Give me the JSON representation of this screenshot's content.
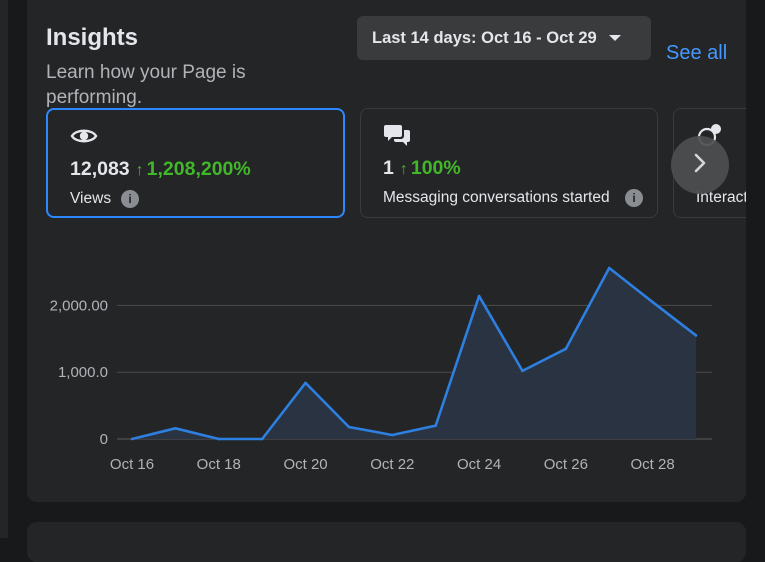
{
  "header": {
    "title": "Insights",
    "subtitle": "Learn how your Page is performing.",
    "date_range": "Last 14 days: Oct 16 - Oct 29",
    "see_all": "See all"
  },
  "metrics": [
    {
      "icon": "eye-icon",
      "value": "12,083",
      "change": "1,208,200%",
      "label": "Views",
      "selected": true
    },
    {
      "icon": "chat-bubbles-icon",
      "value": "1",
      "change": "100%",
      "label": "Messaging conversations started",
      "selected": false
    },
    {
      "icon": "interactions-icon",
      "value": "",
      "change": "",
      "label": "Interact",
      "selected": false
    }
  ],
  "colors": {
    "accent": "#2d88ff",
    "positive": "#42b72a",
    "link": "#4599ff",
    "line": "#2d7fe0",
    "area": "#2a3443"
  },
  "chart_data": {
    "type": "area",
    "x": [
      "Oct 16",
      "Oct 17",
      "Oct 18",
      "Oct 19",
      "Oct 20",
      "Oct 21",
      "Oct 22",
      "Oct 23",
      "Oct 24",
      "Oct 25",
      "Oct 26",
      "Oct 27",
      "Oct 28",
      "Oct 29"
    ],
    "values": [
      0,
      160,
      0,
      0,
      840,
      180,
      60,
      200,
      2140,
      1020,
      1350,
      2560,
      2050,
      1550
    ],
    "xticks": [
      "Oct 16",
      "Oct 18",
      "Oct 20",
      "Oct 22",
      "Oct 24",
      "Oct 26",
      "Oct 28"
    ],
    "yticks": [
      "0",
      "1,000.0",
      "2,000.00"
    ],
    "ytick_values": [
      0,
      1000,
      2000
    ],
    "ylim": [
      0,
      2800
    ],
    "grid": true
  }
}
